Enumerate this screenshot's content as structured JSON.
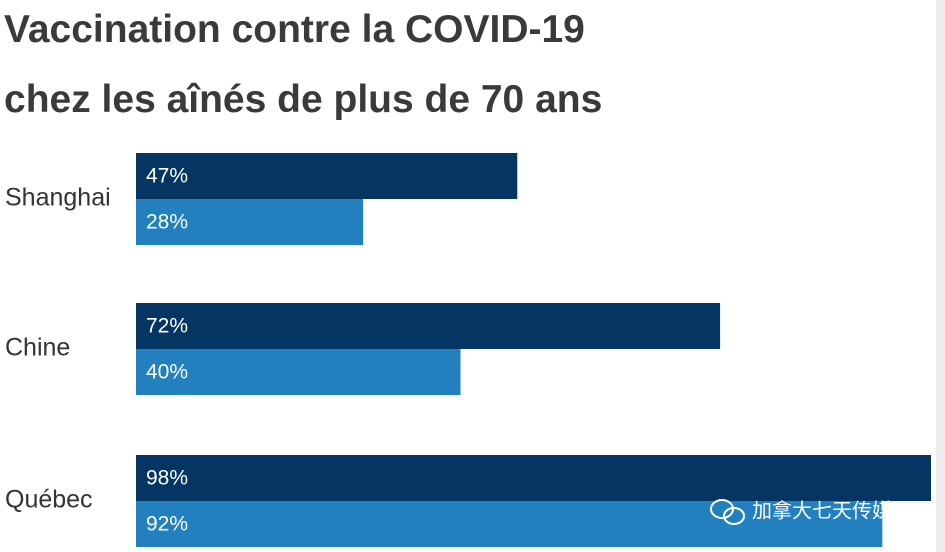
{
  "chart_data": {
    "type": "hbar",
    "title": [
      "Vaccination contre la COVID-19",
      "chez les aînés de plus de 70 ans"
    ],
    "categories": [
      "Shanghai",
      "Chine",
      "Québec"
    ],
    "series": [
      {
        "color": "#053563",
        "values": [
          47,
          72,
          98
        ],
        "value_labels": [
          "47%",
          "72%",
          "98%"
        ]
      },
      {
        "color": "#2280bf",
        "values": [
          28,
          40,
          92
        ],
        "value_labels": [
          "28%",
          "40%",
          "92%"
        ]
      }
    ],
    "watermark": "加拿大七天传媒"
  }
}
